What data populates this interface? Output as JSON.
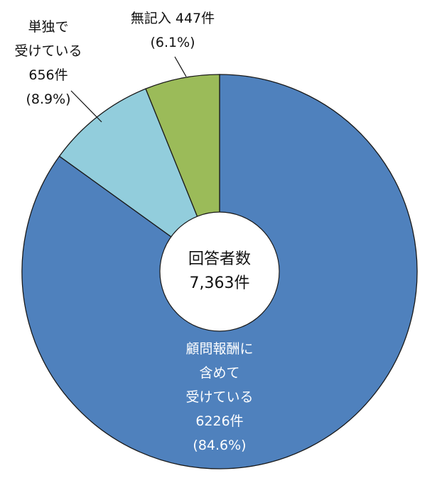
{
  "chart_data": {
    "type": "pie",
    "donut": true,
    "start_angle_deg": 0,
    "direction": "clockwise",
    "total": 7363,
    "center_label": [
      "回答者数",
      "7,363件"
    ],
    "slices": [
      {
        "key": "included",
        "value": 6226,
        "percent": 84.6,
        "color": "#4f81bd",
        "label_lines": [
          "顧問報酬に",
          "含めて",
          "受けている",
          "6226件",
          "(84.6%)"
        ]
      },
      {
        "key": "separate",
        "value": 656,
        "percent": 8.9,
        "color": "#92cddc",
        "label_lines": [
          "単独で",
          "受けている",
          "656件",
          "(8.9%)"
        ]
      },
      {
        "key": "blank",
        "value": 447,
        "percent": 6.1,
        "color": "#9bbb59",
        "label_lines": [
          "無記入 447件",
          "(6.1%)"
        ]
      }
    ]
  }
}
